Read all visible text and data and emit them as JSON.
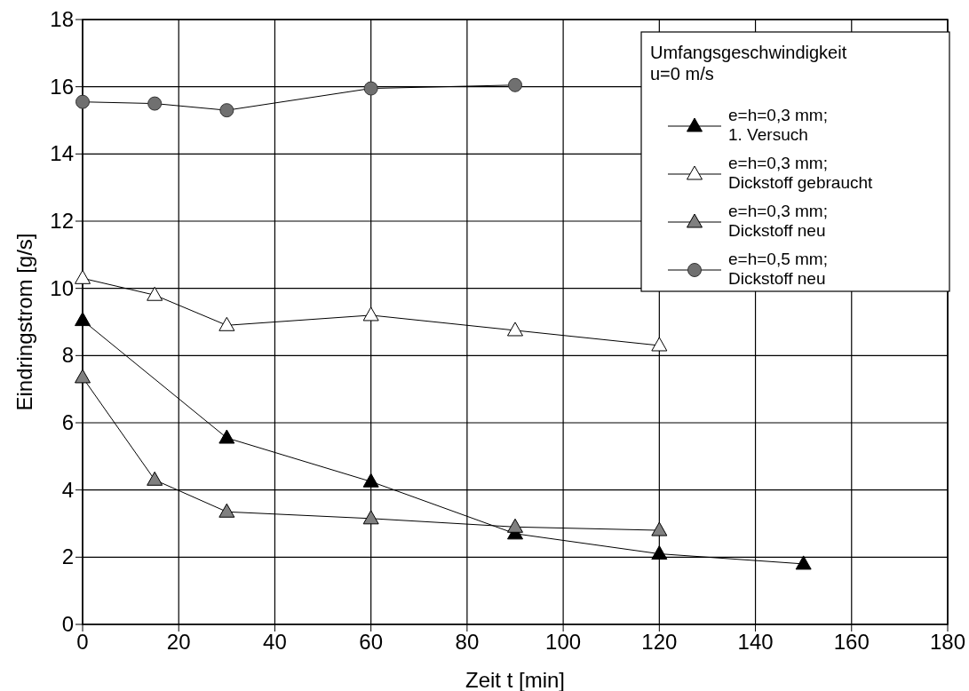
{
  "chart_data": {
    "type": "line",
    "xlabel": "Zeit t [min]",
    "ylabel": "Eindringstrom [g/s]",
    "legend_title": "Umfangsgeschwindigkeit u=0 m/s",
    "xlim": [
      0,
      180
    ],
    "ylim": [
      0,
      18
    ],
    "xticks": [
      0,
      20,
      40,
      60,
      80,
      100,
      120,
      140,
      160,
      180
    ],
    "yticks": [
      0,
      2,
      4,
      6,
      8,
      10,
      12,
      14,
      16,
      18
    ],
    "grid": true,
    "legend": "top right",
    "series": [
      {
        "name": "e=h=0,3 mm; 1. Versuch",
        "color": "#000000",
        "marker": "triangle",
        "x": [
          0,
          30,
          60,
          90,
          120,
          150
        ],
        "values": [
          9.05,
          5.55,
          4.25,
          2.7,
          2.1,
          1.8
        ]
      },
      {
        "name": "e=h=0,3 mm; Dickstoff gebraucht",
        "color": "#ffffff",
        "marker": "triangle",
        "x": [
          0,
          15,
          30,
          60,
          90,
          120
        ],
        "values": [
          10.3,
          9.8,
          8.9,
          9.2,
          8.75,
          8.3
        ]
      },
      {
        "name": "e=h=0,3 mm; Dickstoff neu",
        "color": "#808080",
        "marker": "triangle",
        "x": [
          0,
          15,
          30,
          60,
          90,
          120
        ],
        "values": [
          7.35,
          4.3,
          3.35,
          3.15,
          2.9,
          2.8
        ]
      },
      {
        "name": "e=h=0,5 mm; Dickstoff neu",
        "color": "#707070",
        "marker": "circle",
        "x": [
          0,
          15,
          30,
          60,
          90
        ],
        "values": [
          15.55,
          15.5,
          15.3,
          15.95,
          16.05
        ]
      }
    ]
  }
}
